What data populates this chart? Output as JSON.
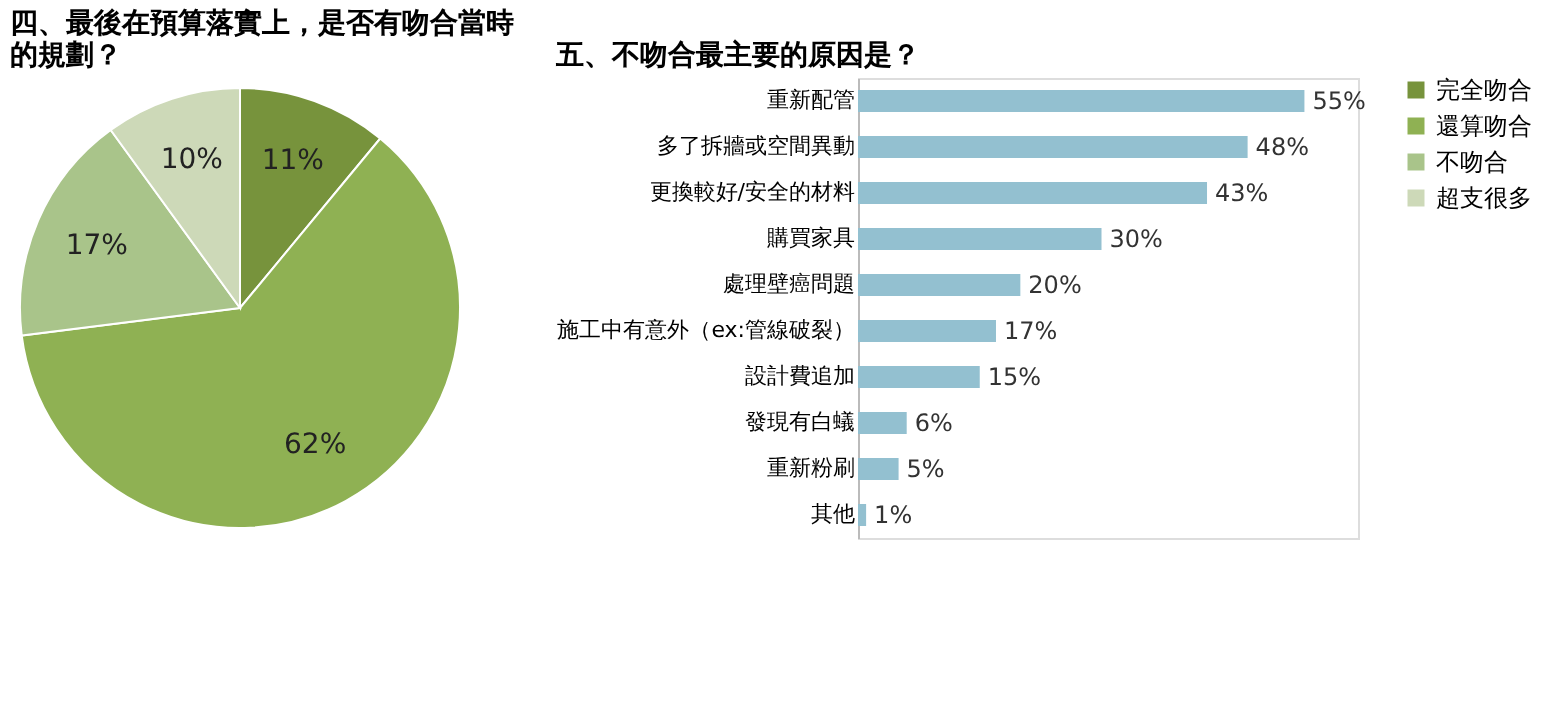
{
  "chart_data": [
    {
      "type": "pie",
      "title": "四、最後在預算落實上，是否有吻合當時的規劃？",
      "categories": [
        "完全吻合",
        "還算吻合",
        "不吻合",
        "超支很多"
      ],
      "values": [
        11,
        62,
        17,
        10
      ],
      "colors": [
        "#77933c",
        "#8fb153",
        "#a9c48a",
        "#cdd9b8"
      ],
      "value_labels": [
        "11%",
        "62%",
        "17%",
        "10%"
      ],
      "legend": "right"
    },
    {
      "type": "bar",
      "orientation": "horizontal",
      "title": "五、不吻合最主要的原因是？",
      "categories": [
        "重新配管",
        "多了拆牆或空間異動",
        "更換較好/安全的材料",
        "購買家具",
        "處理壁癌問題",
        "施工中有意外（ex:管線破裂）",
        "設計費追加",
        "發現有白蟻",
        "重新粉刷",
        "其他"
      ],
      "values": [
        55,
        48,
        43,
        30,
        20,
        17,
        15,
        6,
        5,
        1
      ],
      "color": "#93c0d0",
      "data_labels": true,
      "value_labels": [
        "55%",
        "48%",
        "43%",
        "30%",
        "20%",
        "17%",
        "15%",
        "6%",
        "5%",
        "1%"
      ],
      "tick_labels": "y",
      "grid": false
    }
  ]
}
